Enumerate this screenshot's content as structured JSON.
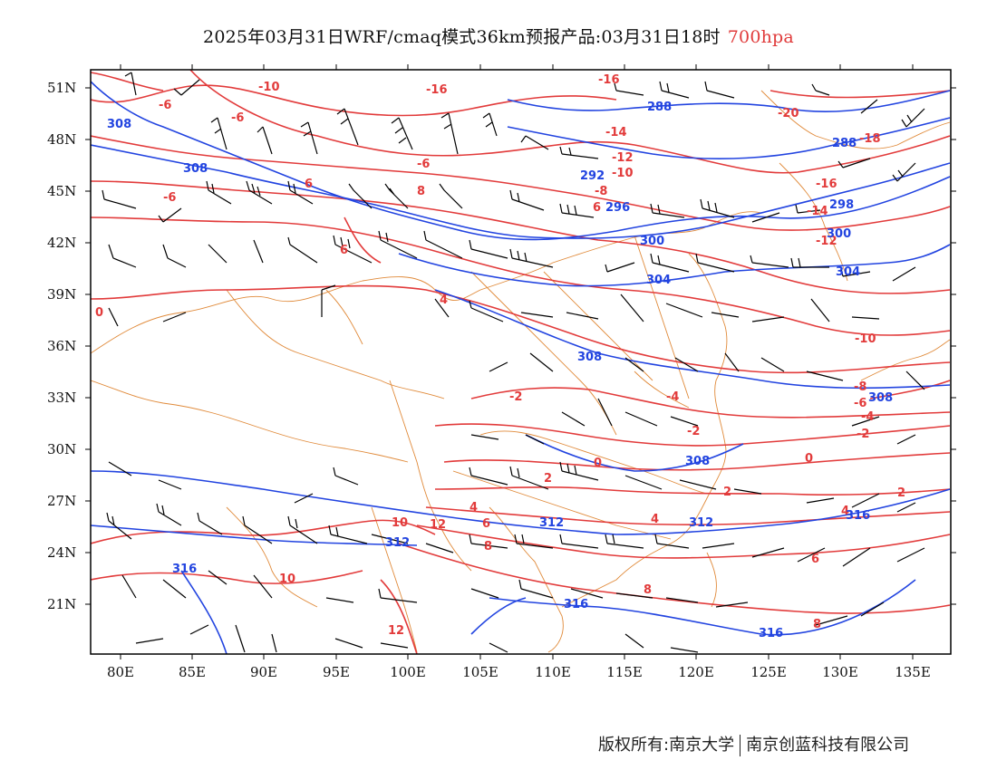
{
  "title": {
    "main": "2025年03月31日WRF/cmaq模式36km预报产品:03月31日18时",
    "level": "700hpa",
    "level_color": "#e03a3a"
  },
  "axes": {
    "lat_labels": [
      "51N",
      "48N",
      "45N",
      "42N",
      "39N",
      "36N",
      "33N",
      "30N",
      "27N",
      "24N",
      "21N"
    ],
    "lon_labels": [
      "80E",
      "85E",
      "90E",
      "95E",
      "100E",
      "105E",
      "110E",
      "115E",
      "120E",
      "125E",
      "130E",
      "135E"
    ]
  },
  "colors": {
    "temperature_contours": "#e23b3b",
    "height_contours": "#2244e0",
    "borders": "#e08a3a",
    "wind_barbs": "#000000"
  },
  "contour_labels": {
    "temperature": [
      "-10",
      "-16",
      "-16",
      "-6",
      "-6",
      "-6",
      "6",
      "6",
      "8",
      "6",
      "4",
      "-20",
      "-14",
      "-12",
      "-10",
      "-8",
      "-6",
      "-16",
      "-18",
      "-14",
      "-12",
      "0",
      "-2",
      "-4",
      "-2",
      "0",
      "2",
      "4",
      "2",
      "4",
      "6",
      "8",
      "8",
      "10",
      "10",
      "12",
      "12",
      "-8",
      "-6",
      "-4",
      "-2",
      "0",
      "2",
      "4",
      "6",
      "8",
      "-10"
    ],
    "height": [
      "308",
      "308",
      "288",
      "288",
      "292",
      "296",
      "298",
      "300",
      "300",
      "304",
      "304",
      "308",
      "308",
      "308",
      "312",
      "312",
      "312",
      "316",
      "316",
      "316",
      "316"
    ]
  },
  "copyright": {
    "left": "版权所有:南京大学",
    "right": "南京创蓝科技有限公司"
  }
}
